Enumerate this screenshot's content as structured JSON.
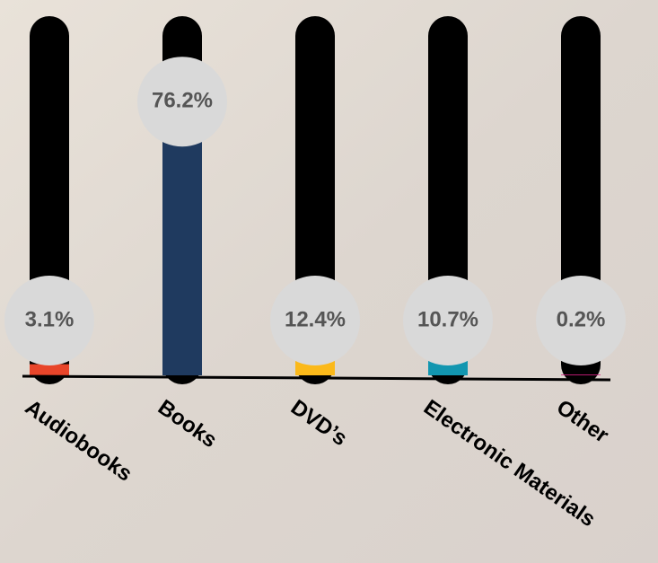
{
  "chart_data": {
    "type": "bar",
    "categories": [
      "Audiobooks",
      "Books",
      "DVD’s",
      "Electronic Materials",
      "Other"
    ],
    "values": [
      3.1,
      76.2,
      12.4,
      10.7,
      0.2
    ],
    "value_labels": [
      "3.1%",
      "76.2%",
      "12.4%",
      "10.7%",
      "0.2%"
    ],
    "colors": [
      "#e8452a",
      "#1f3a5f",
      "#fbb91a",
      "#1296b0",
      "#e0218a"
    ],
    "ylim": [
      0,
      100
    ]
  }
}
